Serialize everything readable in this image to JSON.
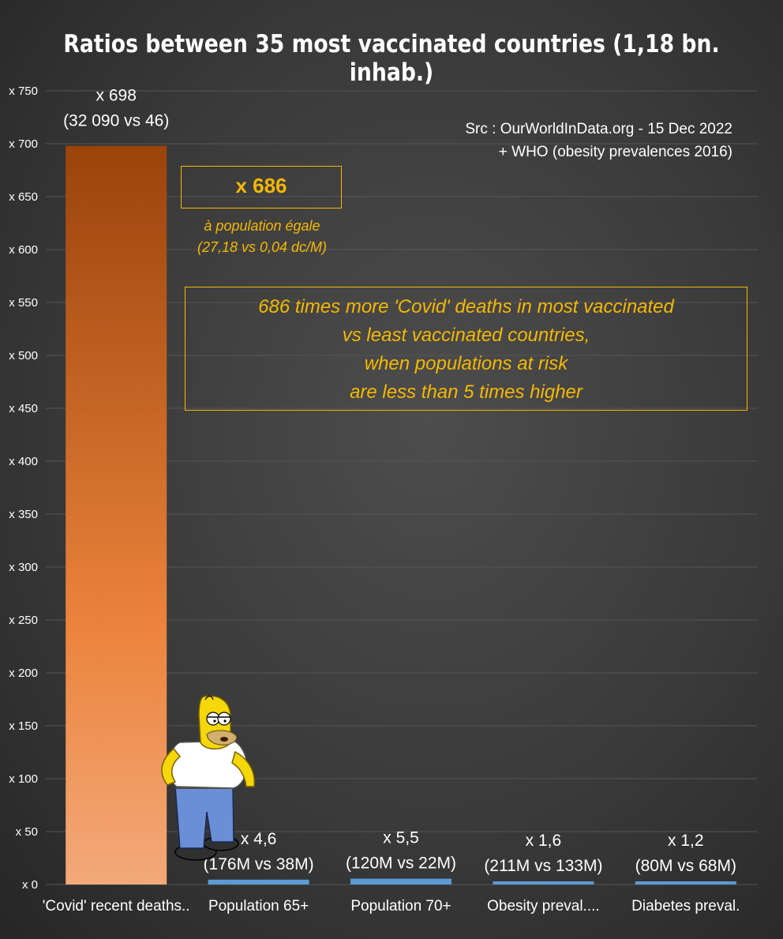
{
  "title": "Ratios between 35 most vaccinated countries (1,18 bn. inhab.)",
  "source": {
    "line1": "Src : OurWorldInData.org - 15 Dec 2022",
    "line2": "+ WHO (obesity prevalences 2016)"
  },
  "annotation": {
    "ratio": "x 686",
    "equal_pop": "à population égale",
    "equal_pop_detail": "(27,18 vs 0,04 dc/M)",
    "message": [
      "686 times more 'Covid' deaths in most vaccinated",
      "vs least vaccinated countries,",
      "when populations at risk",
      "are less than 5 times higher"
    ]
  },
  "colors": {
    "background": "#3a3a3a",
    "covid_bar_top": "#9a430b",
    "covid_bar_bottom": "#f3a97a",
    "other_bars": "#5b9bd5",
    "annotation": "#f5b800",
    "text": "#ffffff",
    "grid": "#555555"
  },
  "chart_data": {
    "type": "bar",
    "title": "Ratios between 35 most vaccinated countries (1,18 bn. inhab.)",
    "categories": [
      "'Covid' recent deaths..",
      "Population 65+",
      "Population 70+",
      "Obesity preval....",
      "Diabetes preval."
    ],
    "values": [
      698,
      4.6,
      5.5,
      1.6,
      1.2
    ],
    "data_labels": [
      [
        "x 698",
        "(32 090 vs 46)"
      ],
      [
        "x 4,6",
        "(176M vs 38M)"
      ],
      [
        "x 5,5",
        "(120M vs 22M)"
      ],
      [
        "x 1,6",
        "(211M vs 133M)"
      ],
      [
        "x 1,2",
        "(80M vs 68M)"
      ]
    ],
    "ylim": [
      0,
      750
    ],
    "yticks": [
      0,
      50,
      100,
      150,
      200,
      250,
      300,
      350,
      400,
      450,
      500,
      550,
      600,
      650,
      700,
      750
    ],
    "ytick_prefix": "x ",
    "grid": true,
    "legend": false
  }
}
